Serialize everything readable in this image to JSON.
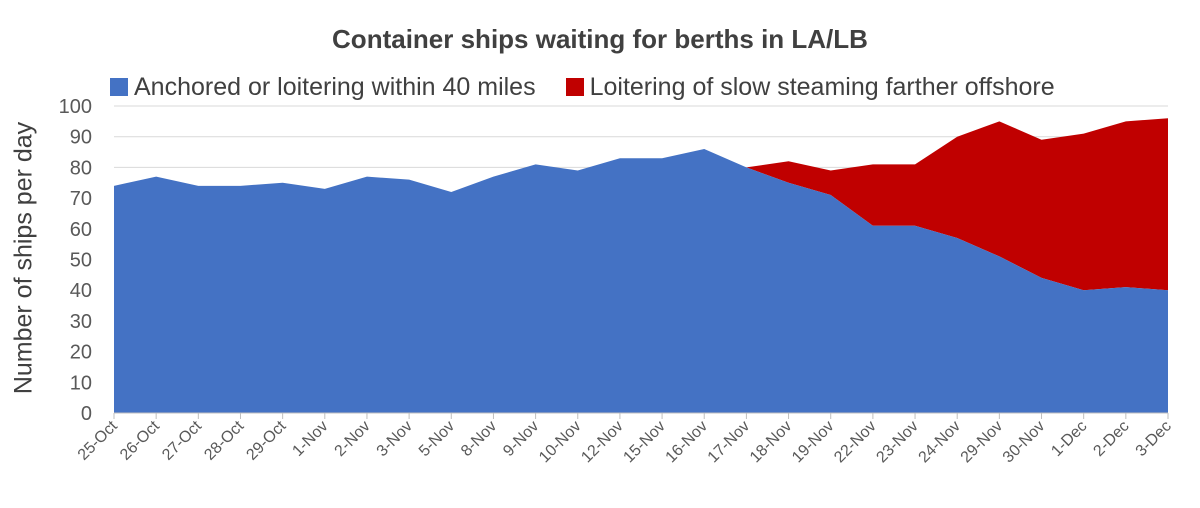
{
  "chart_data": {
    "type": "area",
    "stacked": true,
    "title": "Container ships waiting for berths in LA/LB",
    "ylabel": "Number of ships per day",
    "xlabel": "",
    "ylim": [
      0,
      100
    ],
    "yticks": [
      0,
      10,
      20,
      30,
      40,
      50,
      60,
      70,
      80,
      90,
      100
    ],
    "grid": true,
    "legend_position": "top",
    "categories": [
      "25-Oct",
      "26-Oct",
      "27-Oct",
      "28-Oct",
      "29-Oct",
      "1-Nov",
      "2-Nov",
      "3-Nov",
      "5-Nov",
      "8-Nov",
      "9-Nov",
      "10-Nov",
      "12-Nov",
      "15-Nov",
      "16-Nov",
      "17-Nov",
      "18-Nov",
      "19-Nov",
      "22-Nov",
      "23-Nov",
      "24-Nov",
      "29-Nov",
      "30-Nov",
      "1-Dec",
      "2-Dec",
      "3-Dec"
    ],
    "series": [
      {
        "name": "Anchored or loitering within 40 miles",
        "color": "#4472C4",
        "values": [
          74,
          77,
          74,
          74,
          75,
          73,
          77,
          76,
          72,
          77,
          81,
          79,
          83,
          83,
          86,
          80,
          75,
          71,
          61,
          61,
          57,
          51,
          44,
          40,
          41,
          40
        ]
      },
      {
        "name": "Loitering of slow steaming farther offshore",
        "color": "#C00000",
        "values": [
          0,
          0,
          0,
          0,
          0,
          0,
          0,
          0,
          0,
          0,
          0,
          0,
          0,
          0,
          0,
          0,
          7,
          8,
          20,
          20,
          33,
          44,
          45,
          51,
          54,
          56
        ]
      }
    ]
  }
}
